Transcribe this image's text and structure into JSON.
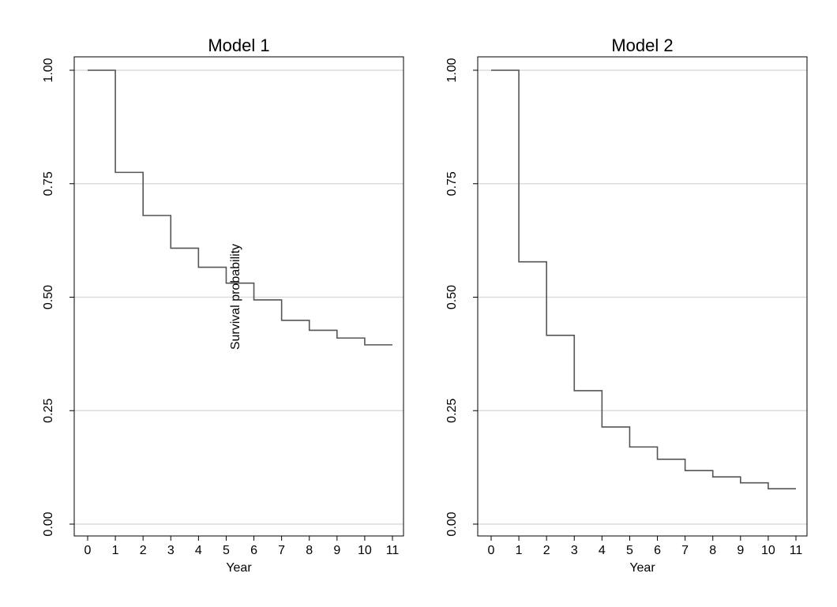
{
  "chart_data": [
    {
      "type": "line",
      "step": true,
      "title": "Model 1",
      "xlabel": "Year",
      "ylabel": "Survival probability",
      "xlim": [
        0,
        11
      ],
      "ylim": [
        0,
        1
      ],
      "xticks": [
        "0",
        "1",
        "2",
        "3",
        "4",
        "5",
        "6",
        "7",
        "8",
        "9",
        "10",
        "11"
      ],
      "yticks": [
        "0.00",
        "0.25",
        "0.50",
        "0.75",
        "1.00"
      ],
      "grid": true,
      "x": [
        0,
        1,
        2,
        3,
        4,
        5,
        6,
        7,
        8,
        9,
        10,
        11
      ],
      "values": [
        1.0,
        0.775,
        0.68,
        0.608,
        0.566,
        0.531,
        0.494,
        0.449,
        0.427,
        0.41,
        0.395,
        0.395
      ]
    },
    {
      "type": "line",
      "step": true,
      "title": "Model 2",
      "xlabel": "Year",
      "ylabel": "",
      "xlim": [
        0,
        11
      ],
      "ylim": [
        0,
        1
      ],
      "xticks": [
        "0",
        "1",
        "2",
        "3",
        "4",
        "5",
        "6",
        "7",
        "8",
        "9",
        "10",
        "11"
      ],
      "yticks": [
        "0.00",
        "0.25",
        "0.50",
        "0.75",
        "1.00"
      ],
      "grid": true,
      "x": [
        0,
        1,
        2,
        3,
        4,
        5,
        6,
        7,
        8,
        9,
        10,
        11
      ],
      "values": [
        1.0,
        0.578,
        0.416,
        0.294,
        0.214,
        0.17,
        0.143,
        0.118,
        0.104,
        0.091,
        0.078,
        0.078
      ]
    }
  ]
}
